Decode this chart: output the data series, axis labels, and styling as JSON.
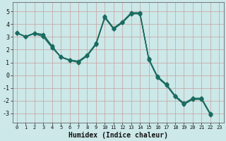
{
  "xlabel": "Humidex (Indice chaleur)",
  "xlim": [
    -0.5,
    23.5
  ],
  "ylim": [
    -3.7,
    5.7
  ],
  "yticks": [
    -3,
    -2,
    -1,
    0,
    1,
    2,
    3,
    4,
    5
  ],
  "xticks": [
    0,
    1,
    2,
    3,
    4,
    5,
    6,
    7,
    8,
    9,
    10,
    11,
    12,
    13,
    14,
    15,
    16,
    17,
    18,
    19,
    20,
    21,
    22,
    23
  ],
  "bg_color": "#cce8e8",
  "line_color": "#1a6b60",
  "grid_color": "#b8d4d0",
  "line1_x": [
    0,
    1,
    2,
    3,
    4,
    5,
    6,
    7,
    8,
    9,
    10,
    11,
    12,
    13,
    14,
    15,
    16,
    17,
    18,
    19,
    20,
    21,
    22,
    23
  ],
  "line1_y": [
    3.3,
    3.0,
    3.3,
    3.2,
    2.3,
    1.4,
    1.2,
    1.1,
    1.6,
    2.5,
    4.6,
    3.7,
    4.2,
    4.9,
    4.9,
    1.3,
    -0.1,
    -0.7,
    -1.6,
    -2.2,
    -1.8,
    -1.8,
    -3.0,
    null
  ],
  "line2_x": [
    0,
    1,
    2,
    3,
    4,
    5,
    6,
    7,
    8,
    9,
    10,
    11,
    12,
    13,
    14,
    15,
    16,
    17,
    18,
    19,
    20,
    21,
    22,
    23
  ],
  "line2_y": [
    3.35,
    3.0,
    3.3,
    3.1,
    2.2,
    1.45,
    1.2,
    1.05,
    1.55,
    2.45,
    4.55,
    3.65,
    4.15,
    4.85,
    4.85,
    1.25,
    -0.15,
    -0.75,
    -1.65,
    -2.25,
    -1.85,
    -1.85,
    -3.05,
    null
  ],
  "line3_x": [
    0,
    1,
    2,
    3,
    4,
    5,
    6,
    7,
    8,
    9,
    10,
    11,
    12,
    13,
    14,
    15,
    16,
    17,
    18,
    19,
    20,
    21,
    22,
    23
  ],
  "line3_y": [
    3.3,
    3.0,
    3.25,
    3.0,
    2.15,
    1.4,
    1.15,
    1.0,
    1.5,
    2.4,
    4.5,
    3.6,
    4.1,
    4.8,
    4.8,
    1.2,
    -0.2,
    -0.8,
    -1.7,
    -2.3,
    -1.9,
    -1.9,
    -3.1,
    null
  ],
  "line4_x": [
    0,
    1,
    2,
    3,
    4,
    5,
    6,
    7,
    8,
    9,
    10,
    11,
    12,
    13,
    14,
    15,
    16,
    17,
    18,
    19,
    20,
    21,
    22,
    23
  ],
  "line4_y": [
    3.3,
    3.05,
    3.3,
    3.15,
    2.25,
    1.42,
    1.18,
    1.02,
    1.52,
    2.42,
    4.52,
    3.62,
    4.12,
    4.82,
    4.82,
    1.22,
    -0.18,
    -0.78,
    -1.68,
    -2.28,
    -1.88,
    -1.88,
    -3.08,
    null
  ]
}
